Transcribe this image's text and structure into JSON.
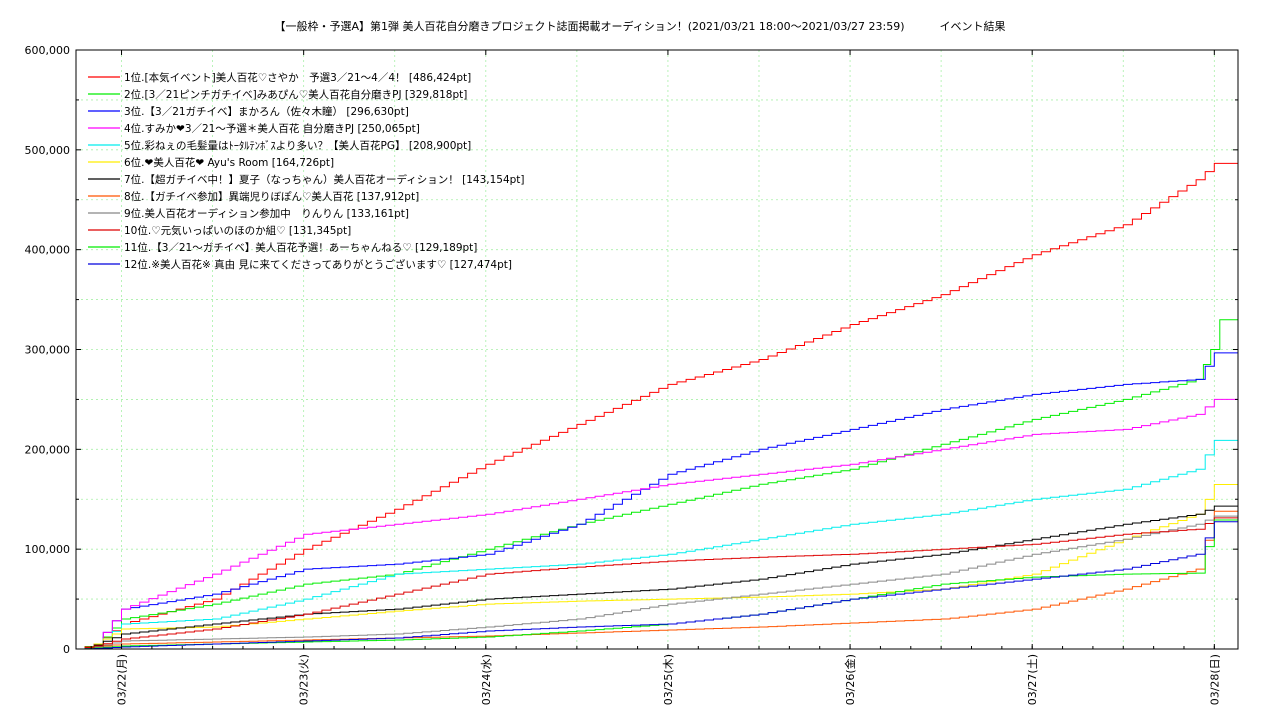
{
  "chart_data": {
    "type": "line",
    "title": "【一般枠・予選A】第1弾 美人百花自分磨きプロジェクト誌面掲載オーディション！(2021/03/21 18:00～2021/03/27 23:59)          イベント結果",
    "xlabel": "",
    "ylabel": "",
    "x_tick_labels": [
      "03/22(月)",
      "03/23(火)",
      "03/24(水)",
      "03/25(木)",
      "03/26(金)",
      "03/27(土)",
      "03/28(日)"
    ],
    "x_range_days": [
      -0.25,
      6.13
    ],
    "y_ticks": [
      0,
      100000,
      200000,
      300000,
      400000,
      500000,
      600000
    ],
    "y_tick_labels": [
      "0",
      "100,000",
      "200,000",
      "300,000",
      "400,000",
      "500,000",
      "600,000"
    ],
    "ylim": [
      0,
      600000
    ],
    "grid": true,
    "legend_position": "top-left",
    "series": [
      {
        "name": "1位.[本気イベント]美人百花♡さやか　予選3／21〜4／4！ [486,424pt]",
        "color": "#ff0000",
        "x": [
          -0.25,
          -0.15,
          0,
          0.5,
          1,
          1.5,
          2,
          2.5,
          3,
          3.5,
          4,
          4.5,
          5,
          5.5,
          5.9,
          6,
          6.13
        ],
        "values": [
          0,
          5000,
          25000,
          50000,
          100000,
          140000,
          185000,
          225000,
          265000,
          290000,
          325000,
          355000,
          395000,
          425000,
          470000,
          486424,
          486424
        ]
      },
      {
        "name": "2位.[3／21ピンチガチイベ]みあぴん♡美人百花自分磨きPJ [329,818pt]",
        "color": "#00ee00",
        "x": [
          -0.25,
          -0.15,
          0,
          0.5,
          1,
          1.5,
          2,
          2.5,
          3,
          3.5,
          4,
          4.5,
          5,
          5.5,
          5.9,
          5.98,
          6.03,
          6.13
        ],
        "values": [
          0,
          3000,
          30000,
          45000,
          65000,
          75000,
          100000,
          125000,
          145000,
          165000,
          180000,
          205000,
          230000,
          250000,
          270000,
          300000,
          329818,
          329818
        ]
      },
      {
        "name": "3位.【3／21ガチイベ】まかろん（佐々木瞳） [296,630pt]",
        "color": "#0000ff",
        "x": [
          -0.25,
          -0.15,
          0,
          0.5,
          1,
          1.5,
          2,
          2.5,
          3,
          3.5,
          4,
          4.5,
          5,
          5.5,
          5.9,
          6,
          6.13
        ],
        "values": [
          0,
          5000,
          40000,
          55000,
          80000,
          85000,
          95000,
          125000,
          175000,
          200000,
          220000,
          240000,
          255000,
          265000,
          270000,
          296630,
          296630
        ]
      },
      {
        "name": "4位.すみか❤3／21〜予選＊美人百花 自分磨きPJ [250,065pt]",
        "color": "#ff00ff",
        "x": [
          -0.25,
          -0.15,
          0,
          0.5,
          1,
          1.5,
          2,
          2.5,
          3,
          3.5,
          4,
          4.5,
          5,
          5.5,
          5.9,
          6,
          6.13
        ],
        "values": [
          0,
          5000,
          40000,
          75000,
          115000,
          125000,
          135000,
          150000,
          165000,
          175000,
          185000,
          200000,
          215000,
          220000,
          235000,
          250065,
          250065
        ]
      },
      {
        "name": "5位.彩ねぇの毛髪量はﾄｰﾀﾙﾃﾝﾎﾞｽより多い？【美人百花PG】 [208,900pt]",
        "color": "#00eeee",
        "x": [
          -0.25,
          -0.15,
          0,
          0.5,
          1,
          1.5,
          2,
          2.5,
          3,
          3.5,
          4,
          4.5,
          5,
          5.5,
          5.9,
          6,
          6.13
        ],
        "values": [
          0,
          3000,
          25000,
          30000,
          50000,
          75000,
          80000,
          85000,
          95000,
          110000,
          125000,
          135000,
          150000,
          160000,
          180000,
          208900,
          208900
        ]
      },
      {
        "name": "6位.❤美人百花❤ Ayu's Room [164,726pt]",
        "color": "#ffee00",
        "x": [
          -0.25,
          -0.15,
          0,
          0.5,
          1,
          1.5,
          2,
          2.5,
          3,
          3.5,
          4,
          4.5,
          5,
          5.5,
          5.9,
          6,
          6.13
        ],
        "values": [
          0,
          5000,
          20000,
          22000,
          30000,
          38000,
          45000,
          48000,
          50000,
          52000,
          55000,
          60000,
          75000,
          110000,
          135000,
          164726,
          164726
        ]
      },
      {
        "name": "7位.【超ガチイベ中！】夏子（なっちゃん）美人百花オーディション！ [143,154pt]",
        "color": "#000000",
        "x": [
          -0.25,
          -0.15,
          0,
          0.5,
          1,
          1.5,
          2,
          2.5,
          3,
          3.5,
          4,
          4.5,
          5,
          5.5,
          5.9,
          6,
          6.13
        ],
        "values": [
          0,
          4000,
          15000,
          25000,
          35000,
          40000,
          50000,
          55000,
          60000,
          70000,
          85000,
          95000,
          110000,
          125000,
          135000,
          143154,
          143154
        ]
      },
      {
        "name": "8位.【ガチイベ参加】異端児りぼぽん♡美人百花 [137,912pt]",
        "color": "#ff5500",
        "x": [
          -0.25,
          -0.15,
          0,
          0.5,
          1,
          1.5,
          2,
          2.5,
          3,
          3.5,
          4,
          4.5,
          5,
          5.5,
          5.9,
          6,
          6.13
        ],
        "values": [
          0,
          2000,
          5000,
          7000,
          9000,
          11000,
          13000,
          16000,
          19000,
          22000,
          26000,
          30000,
          40000,
          60000,
          80000,
          137912,
          137912
        ]
      },
      {
        "name": "9位.美人百花オーディション参加中　りんりん [133,161pt]",
        "color": "#888888",
        "x": [
          -0.25,
          -0.15,
          0,
          0.5,
          1,
          1.5,
          2,
          2.5,
          3,
          3.5,
          4,
          4.5,
          5,
          5.5,
          5.9,
          6,
          6.13
        ],
        "values": [
          0,
          2000,
          8000,
          10000,
          12000,
          15000,
          22000,
          30000,
          45000,
          55000,
          65000,
          75000,
          95000,
          110000,
          125000,
          133161,
          133161
        ]
      },
      {
        "name": "10位.♡元気いっぱいのほのか組♡ [131,345pt]",
        "color": "#dd0000",
        "x": [
          -0.25,
          -0.15,
          0,
          0.5,
          1,
          1.5,
          2,
          2.5,
          3,
          3.5,
          4,
          4.5,
          5,
          5.5,
          5.9,
          6,
          6.13
        ],
        "values": [
          0,
          3000,
          10000,
          20000,
          35000,
          55000,
          75000,
          82000,
          88000,
          92000,
          95000,
          100000,
          105000,
          115000,
          120000,
          131345,
          131345
        ]
      },
      {
        "name": "11位.【3／21〜ガチイベ】美人百花予選！あーちゃんねる♡ [129,189pt]",
        "color": "#00ee00",
        "x": [
          -0.25,
          -0.15,
          0,
          0.5,
          1,
          1.5,
          2,
          2.5,
          3,
          3.5,
          4,
          4.5,
          5,
          5.5,
          5.9,
          6,
          6.13
        ],
        "values": [
          0,
          1000,
          3000,
          5000,
          7000,
          9000,
          12000,
          18000,
          25000,
          35000,
          50000,
          65000,
          72000,
          75000,
          76000,
          129189,
          129189
        ]
      },
      {
        "name": "12位.※美人百花※ 真由 見に来てくださってありがとうございます♡ [127,474pt]",
        "color": "#0000dd",
        "x": [
          -0.25,
          -0.15,
          0,
          0.5,
          1,
          1.5,
          2,
          2.5,
          3,
          3.5,
          4,
          4.5,
          5,
          5.5,
          5.9,
          6,
          6.13
        ],
        "values": [
          0,
          500,
          2000,
          5000,
          8000,
          11000,
          18000,
          22000,
          25000,
          35000,
          50000,
          60000,
          70000,
          80000,
          95000,
          127474,
          127474
        ]
      }
    ]
  }
}
